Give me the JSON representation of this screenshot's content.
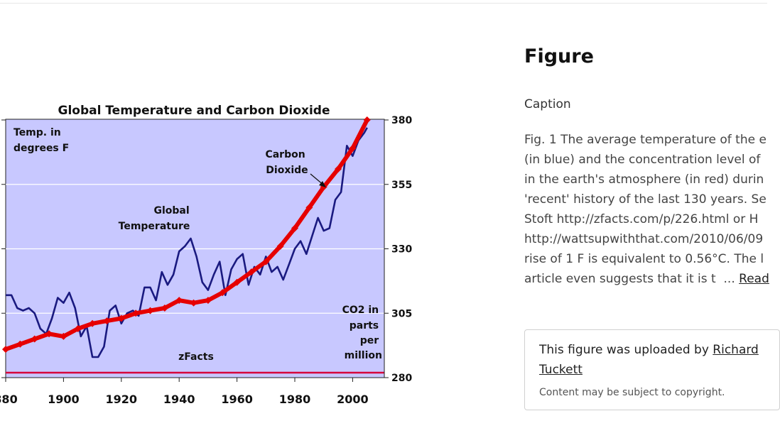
{
  "figure": {
    "chart_data": {
      "type": "line",
      "title": "Global Temperature and Carbon Dioxide",
      "left_axis_label": [
        "Temp. in",
        "degrees F"
      ],
      "right_axis_label": [
        "CO2 in",
        "parts",
        "per",
        "million"
      ],
      "source_label": "zFacts",
      "x_ticks": [
        "880",
        "1900",
        "1920",
        "1940",
        "1960",
        "1980",
        "2000"
      ],
      "right_ticks": [
        "380",
        "355",
        "330",
        "305",
        "280"
      ],
      "xlim": [
        1880,
        2008
      ],
      "ylim_co2": [
        280,
        380
      ],
      "grid": true,
      "series": [
        {
          "name": "Global Temperature",
          "label_lines": [
            "Global",
            "Temperature"
          ],
          "color": "#1a1a80",
          "points": [
            [
              1880,
              312
            ],
            [
              1882,
              312
            ],
            [
              1884,
              307
            ],
            [
              1886,
              306
            ],
            [
              1888,
              307
            ],
            [
              1890,
              305
            ],
            [
              1892,
              299
            ],
            [
              1894,
              297
            ],
            [
              1896,
              303
            ],
            [
              1898,
              311
            ],
            [
              1900,
              309
            ],
            [
              1902,
              313
            ],
            [
              1904,
              307
            ],
            [
              1906,
              296
            ],
            [
              1908,
              300
            ],
            [
              1910,
              288
            ],
            [
              1912,
              288
            ],
            [
              1914,
              292
            ],
            [
              1916,
              306
            ],
            [
              1918,
              308
            ],
            [
              1920,
              301
            ],
            [
              1922,
              305
            ],
            [
              1924,
              306
            ],
            [
              1926,
              304
            ],
            [
              1928,
              315
            ],
            [
              1930,
              315
            ],
            [
              1932,
              310
            ],
            [
              1934,
              321
            ],
            [
              1936,
              316
            ],
            [
              1938,
              320
            ],
            [
              1940,
              329
            ],
            [
              1942,
              331
            ],
            [
              1944,
              334
            ],
            [
              1946,
              327
            ],
            [
              1948,
              317
            ],
            [
              1950,
              314
            ],
            [
              1952,
              320
            ],
            [
              1954,
              325
            ],
            [
              1956,
              312
            ],
            [
              1958,
              322
            ],
            [
              1960,
              326
            ],
            [
              1962,
              328
            ],
            [
              1964,
              316
            ],
            [
              1966,
              323
            ],
            [
              1968,
              320
            ],
            [
              1970,
              327
            ],
            [
              1972,
              321
            ],
            [
              1974,
              323
            ],
            [
              1976,
              318
            ],
            [
              1978,
              324
            ],
            [
              1980,
              330
            ],
            [
              1982,
              333
            ],
            [
              1984,
              328
            ],
            [
              1986,
              335
            ],
            [
              1988,
              342
            ],
            [
              1990,
              337
            ],
            [
              1992,
              338
            ],
            [
              1994,
              349
            ],
            [
              1996,
              352
            ],
            [
              1998,
              370
            ],
            [
              2000,
              366
            ],
            [
              2002,
              372
            ],
            [
              2004,
              375
            ],
            [
              2005,
              377
            ]
          ]
        },
        {
          "name": "Carbon Dioxide",
          "label_lines": [
            "Carbon",
            "Dioxide"
          ],
          "color": "#e60000",
          "points": [
            [
              1880,
              291
            ],
            [
              1885,
              293
            ],
            [
              1890,
              295
            ],
            [
              1895,
              297
            ],
            [
              1900,
              296
            ],
            [
              1905,
              299
            ],
            [
              1910,
              301
            ],
            [
              1915,
              302
            ],
            [
              1920,
              303
            ],
            [
              1925,
              305
            ],
            [
              1930,
              306
            ],
            [
              1935,
              307
            ],
            [
              1940,
              310
            ],
            [
              1945,
              309
            ],
            [
              1950,
              310
            ],
            [
              1955,
              313
            ],
            [
              1960,
              317
            ],
            [
              1965,
              321
            ],
            [
              1970,
              325
            ],
            [
              1975,
              331
            ],
            [
              1980,
              338
            ],
            [
              1985,
              346
            ],
            [
              1990,
              354
            ],
            [
              1995,
              361
            ],
            [
              2000,
              369
            ],
            [
              2005,
              380
            ]
          ]
        }
      ]
    }
  },
  "panel": {
    "title": "Figure",
    "caption_label": "Caption",
    "caption_lines": [
      "Fig. 1 The average temperature of the e",
      "(in blue) and the concentration level of",
      "in the earth's atmosphere (in red) durin",
      "'recent' history of the last 130 years. Se",
      "Stoft http://zfacts.com/p/226.html or H",
      "http://wattsupwiththat.com/2010/06/09",
      "rise of 1 F is equivalent to 0.56°C. The l"
    ],
    "caption_last_line": "article even suggests that it is t",
    "ellipsis": "...",
    "read_more": "Read",
    "upload_prefix": "This figure was uploaded by",
    "uploader_first": "Richard",
    "uploader_last": "Tuckett",
    "copyright_note": "Content may be subject to copyright."
  }
}
